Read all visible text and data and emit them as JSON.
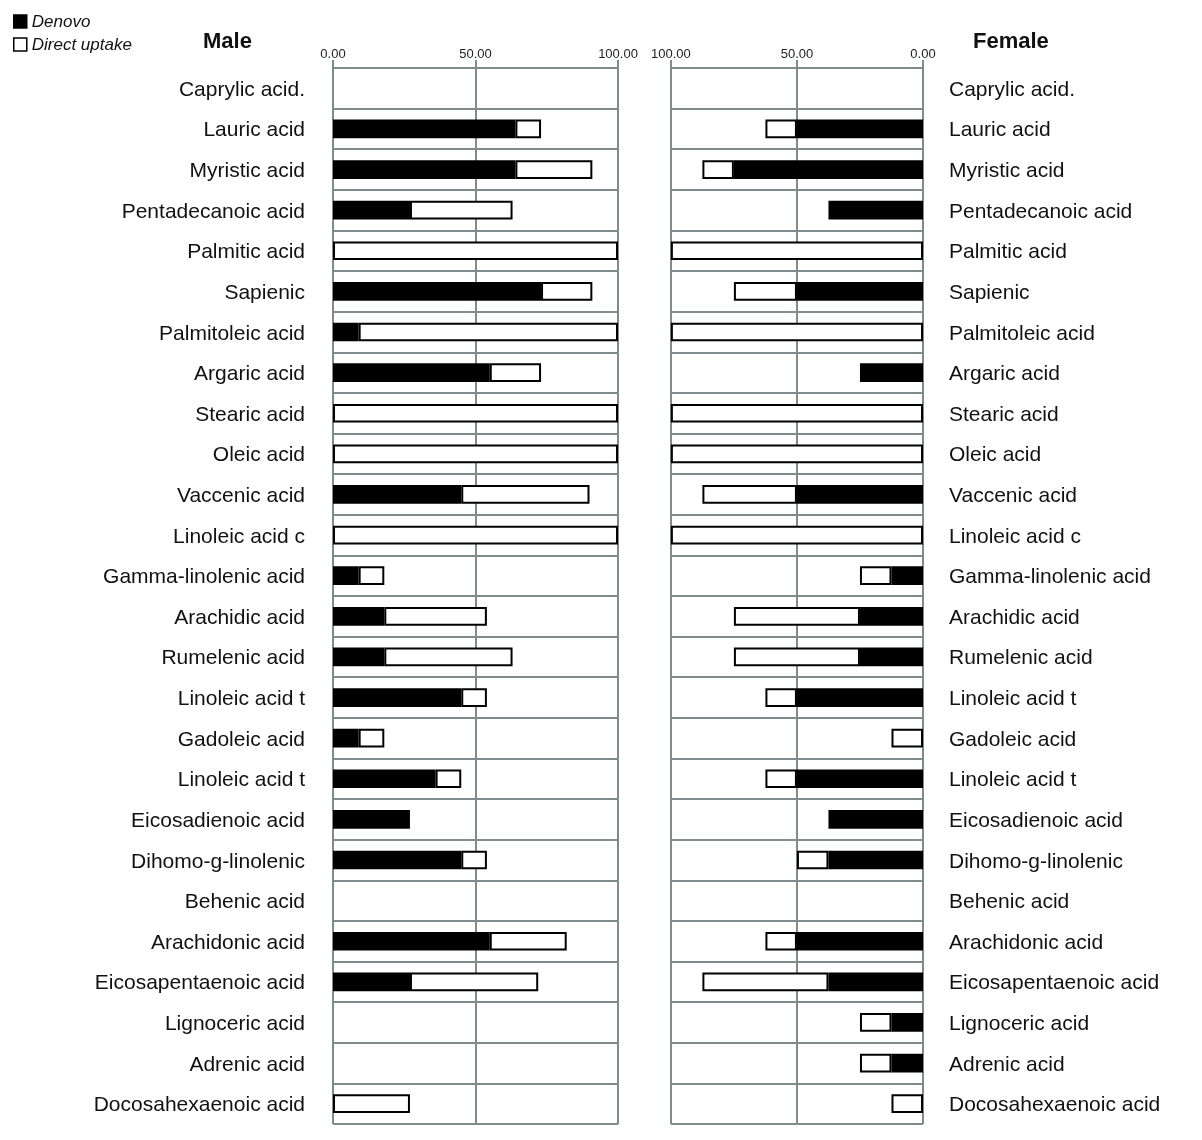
{
  "chart_data": [
    {
      "type": "bar",
      "orientation": "horizontal",
      "stacked": true,
      "title": "Male",
      "legend": "top left",
      "grid": true,
      "categories": [
        "Caprylic acid.",
        "Lauric acid",
        "Myristic acid",
        "Pentadecanoic acid",
        "Palmitic acid",
        "Sapienic",
        "Palmitoleic acid",
        "Argaric acid",
        "Stearic acid",
        "Oleic acid",
        "Vaccenic acid",
        "Linoleic acid c",
        "Gamma-linolenic acid",
        "Arachidic acid",
        "Rumelenic acid",
        "Linoleic acid t",
        "Gadoleic acid",
        "Linoleic acid t",
        "Eicosadienoic acid",
        "Dihomo-g-linolenic",
        "Behenic acid",
        "Arachidonic acid",
        "Eicosapentaenoic acid",
        "Lignoceric acid",
        "Adrenic acid",
        "Docosahexaenoic acid"
      ],
      "series": [
        {
          "name": "Denovo",
          "color": "#000000",
          "values": [
            null,
            64,
            64,
            27,
            null,
            73,
            9,
            55,
            null,
            null,
            45,
            null,
            9,
            18,
            18,
            45,
            9,
            36,
            27,
            45,
            null,
            55,
            27,
            null,
            null,
            null
          ]
        },
        {
          "name": "Direct uptake",
          "color": "#ffffff",
          "values": [
            null,
            9,
            27,
            36,
            100,
            18,
            91,
            18,
            100,
            100,
            45,
            100,
            9,
            36,
            45,
            9,
            9,
            9,
            null,
            9,
            null,
            27,
            45,
            null,
            null,
            27
          ]
        }
      ],
      "xlim": [
        0,
        100
      ],
      "xticks": [
        {
          "value": 0,
          "label": "0.00"
        },
        {
          "value": 50,
          "label": "50.00"
        },
        {
          "value": 100,
          "label": "100.00"
        }
      ]
    },
    {
      "type": "bar",
      "orientation": "horizontal",
      "stacked": true,
      "title": "Female",
      "grid": true,
      "categories": [
        "Caprylic acid.",
        "Lauric acid",
        "Myristic acid",
        "Pentadecanoic acid",
        "Palmitic acid",
        "Sapienic",
        "Palmitoleic acid",
        "Argaric acid",
        "Stearic acid",
        "Oleic acid",
        "Vaccenic acid",
        "Linoleic acid c",
        "Gamma-linolenic acid",
        "Arachidic acid",
        "Rumelenic acid",
        "Linoleic acid t",
        "Gadoleic acid",
        "Linoleic acid t",
        "Eicosadienoic acid",
        "Dihomo-g-linolenic",
        "Behenic acid",
        "Arachidonic acid",
        "Eicosapentaenoic acid",
        "Lignoceric acid",
        "Adrenic acid",
        "Docosahexaenoic acid"
      ],
      "series": [
        {
          "color": "#000000",
          "values": [
            null,
            50,
            75,
            37.5,
            null,
            50,
            null,
            25,
            null,
            null,
            50,
            null,
            12.5,
            25,
            25,
            50,
            null,
            50,
            37.5,
            37.5,
            null,
            50,
            37.5,
            12.5,
            12.5,
            null
          ]
        },
        {
          "color": "#ffffff",
          "values": [
            null,
            12.5,
            12.5,
            null,
            100,
            25,
            100,
            null,
            100,
            100,
            37.5,
            100,
            12.5,
            50,
            50,
            12.5,
            12.5,
            12.5,
            null,
            12.5,
            null,
            12.5,
            50,
            12.5,
            12.5,
            12.5
          ]
        }
      ],
      "xlim": [
        100,
        0
      ],
      "xticks": [
        {
          "value": 100,
          "label": "100.00"
        },
        {
          "value": 50,
          "label": "50.00"
        },
        {
          "value": 0,
          "label": "0.00"
        }
      ]
    }
  ]
}
